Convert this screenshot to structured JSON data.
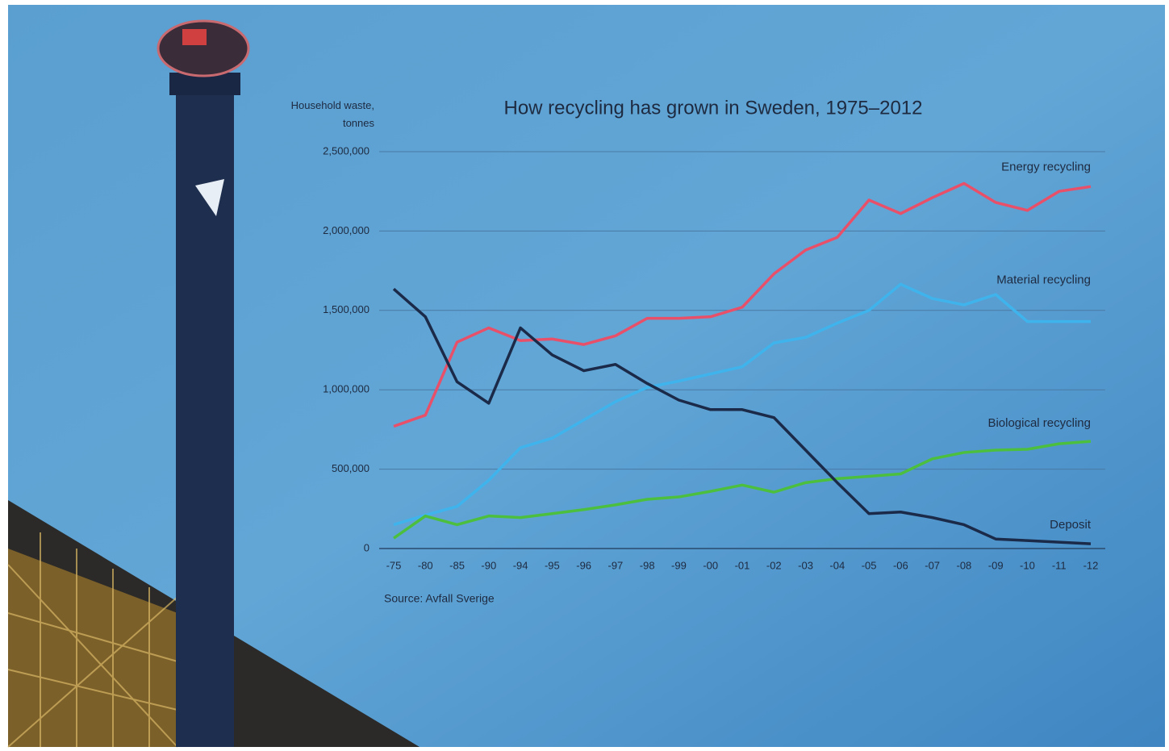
{
  "chart_data": {
    "type": "line",
    "title": "How recycling has grown in Sweden, 1975–2012",
    "y_label": "Household waste, tonnes",
    "source": "Source: Avfall Sverige",
    "categories": [
      "-75",
      "-80",
      "-85",
      "-90",
      "-94",
      "-95",
      "-96",
      "-97",
      "-98",
      "-99",
      "-00",
      "-01",
      "-02",
      "-03",
      "-04",
      "-05",
      "-06",
      "-07",
      "-08",
      "-09",
      "-10",
      "-11",
      "-12"
    ],
    "series": [
      {
        "name": "Energy recycling",
        "color": "#e8506a",
        "values": [
          770000,
          840000,
          1300000,
          1390000,
          1310000,
          1320000,
          1285000,
          1340000,
          1450000,
          1450000,
          1460000,
          1520000,
          1730000,
          1880000,
          1960000,
          2195000,
          2110000,
          2210000,
          2300000,
          2180000,
          2130000,
          2250000,
          2280000
        ]
      },
      {
        "name": "Material recycling",
        "color": "#3fb4ec",
        "values": [
          150000,
          210000,
          265000,
          430000,
          635000,
          695000,
          810000,
          925000,
          1015000,
          1055000,
          1100000,
          1145000,
          1295000,
          1330000,
          1420000,
          1500000,
          1665000,
          1575000,
          1535000,
          1600000,
          1430000,
          1430000,
          1430000
        ]
      },
      {
        "name": "Biological recycling",
        "color": "#4cbf3e",
        "values": [
          65000,
          205000,
          150000,
          205000,
          195000,
          220000,
          245000,
          275000,
          310000,
          325000,
          360000,
          400000,
          355000,
          415000,
          440000,
          455000,
          470000,
          565000,
          605000,
          620000,
          625000,
          660000,
          675000
        ]
      },
      {
        "name": "Deposit",
        "color": "#1b2a48",
        "values": [
          1635000,
          1460000,
          1050000,
          915000,
          1390000,
          1220000,
          1120000,
          1160000,
          1040000,
          935000,
          875000,
          875000,
          825000,
          620000,
          415000,
          220000,
          230000,
          195000,
          150000,
          60000,
          50000,
          40000,
          30000
        ]
      }
    ],
    "ylim": [
      0,
      2500000
    ],
    "yticks": [
      0,
      {
        "value": 500000,
        "label": "500,000"
      },
      {
        "value": 1000000,
        "label": "1,000,000"
      },
      {
        "value": 1500000,
        "label": "1,500,000"
      },
      {
        "value": 2000000,
        "label": "2,000,000"
      },
      {
        "value": 2500000,
        "label": "2,500,000"
      }
    ],
    "grid": true
  }
}
